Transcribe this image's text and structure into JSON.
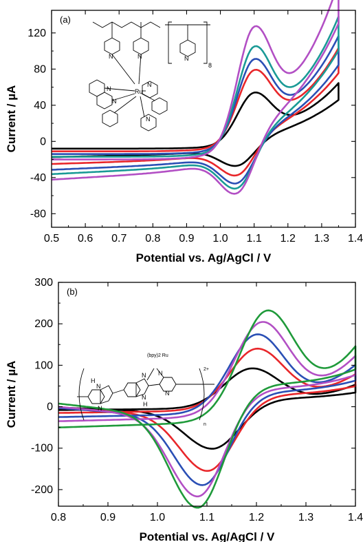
{
  "chart_data": [
    {
      "type": "line",
      "panel_label": "(a)",
      "xlabel": "Potential vs. Ag/AgCl / V",
      "ylabel": "Current / µA",
      "xlim": [
        0.5,
        1.4
      ],
      "ylim": [
        -95,
        145
      ],
      "x_ticks": [
        0.5,
        0.6,
        0.7,
        0.8,
        0.9,
        1.0,
        1.1,
        1.2,
        1.3,
        1.4
      ],
      "y_ticks": [
        -80,
        -40,
        0,
        40,
        80,
        120
      ],
      "grid": false,
      "legend": "none",
      "inset": {
        "atoms": [
          "N",
          "N",
          "N",
          "N",
          "N",
          "N",
          "N",
          "Ru"
        ],
        "repeat_subscript": "8"
      },
      "series": [
        {
          "color": "#000000",
          "oxidation_peak": [
            1.1,
            54
          ],
          "reduction_peak": [
            1.05,
            -37
          ],
          "start_current": -8,
          "end_current": 51,
          "reverse_end_current": -9
        },
        {
          "color": "#e8262a",
          "oxidation_peak": [
            1.1,
            79
          ],
          "reduction_peak": [
            1.05,
            -53
          ],
          "start_current": -11,
          "end_current": 84,
          "reverse_end_current": -13
        },
        {
          "color": "#2a4fb5",
          "oxidation_peak": [
            1.1,
            91
          ],
          "reduction_peak": [
            1.05,
            -65
          ],
          "start_current": -14,
          "end_current": 94,
          "reverse_end_current": -17
        },
        {
          "color": "#1a9a96",
          "oxidation_peak": [
            1.1,
            105
          ],
          "reduction_peak": [
            1.05,
            -74
          ],
          "start_current": -17,
          "end_current": 112,
          "reverse_end_current": -20
        },
        {
          "color": "#b24fc4",
          "oxidation_peak": [
            1.1,
            127
          ],
          "reduction_peak": [
            1.05,
            -85
          ],
          "start_current": -20,
          "end_current": 145,
          "reverse_end_current": -24
        }
      ]
    },
    {
      "type": "line",
      "panel_label": "(b)",
      "xlabel": "Potential vs. Ag/AgCl / V",
      "ylabel": "Current / µA",
      "xlim": [
        0.8,
        1.4
      ],
      "ylim": [
        -240,
        300
      ],
      "x_ticks": [
        0.8,
        0.9,
        1.0,
        1.1,
        1.2,
        1.3,
        1.4
      ],
      "y_ticks": [
        -200,
        -100,
        0,
        100,
        200,
        300
      ],
      "grid": false,
      "legend": "none",
      "inset": {
        "atoms": [
          "N",
          "N",
          "H",
          "N",
          "H",
          "N",
          "N",
          "N"
        ],
        "metal_label": "(bpy)2 Ru",
        "charge": "2+",
        "repeat_subscript": "n"
      },
      "series": [
        {
          "color": "#000000",
          "oxidation_peak": [
            1.19,
            88
          ],
          "reduction_peak": [
            1.11,
            -88
          ],
          "start_current": -8,
          "end_current": 38,
          "reverse_end_current": 35
        },
        {
          "color": "#e8262a",
          "oxidation_peak": [
            1.2,
            133
          ],
          "reduction_peak": [
            1.1,
            -135
          ],
          "start_current": -15,
          "end_current": 55,
          "reverse_end_current": 53
        },
        {
          "color": "#2a4fb5",
          "oxidation_peak": [
            1.2,
            165
          ],
          "reduction_peak": [
            1.09,
            -165
          ],
          "start_current": -25,
          "end_current": 70,
          "reverse_end_current": 66
        },
        {
          "color": "#b24fc4",
          "oxidation_peak": [
            1.21,
            192
          ],
          "reduction_peak": [
            1.08,
            -188
          ],
          "start_current": -35,
          "end_current": 85,
          "reverse_end_current": 80
        },
        {
          "color": "#1f9a3a",
          "oxidation_peak": [
            1.22,
            216
          ],
          "reduction_peak": [
            1.08,
            -208
          ],
          "start_current": -50,
          "end_current": 100,
          "reverse_end_current": 100
        }
      ]
    }
  ]
}
